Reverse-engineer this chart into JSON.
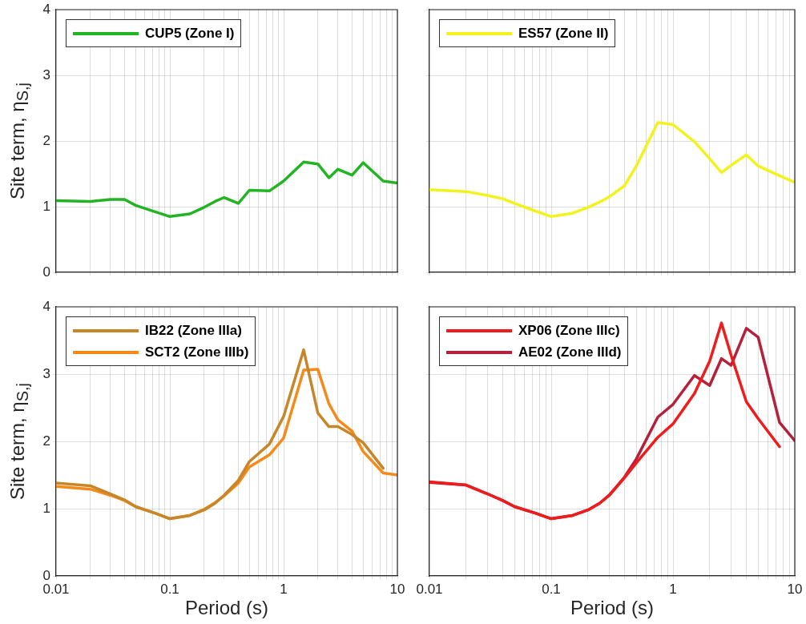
{
  "chart_data": [
    {
      "type": "line",
      "ylabel": "Site term, η$_{S,j}$",
      "log": "x",
      "grid": true,
      "legend": "top left",
      "tick_labels": "y",
      "marker": "none",
      "x": [
        0.01,
        0.02,
        0.03,
        0.04,
        0.05,
        0.075,
        0.1,
        0.15,
        0.2,
        0.25,
        0.3,
        0.4,
        0.5,
        0.75,
        1,
        1.5,
        2,
        2.5,
        3,
        4,
        5,
        7.5,
        10
      ],
      "xlim": [
        0.01,
        10
      ],
      "ylim": [
        0,
        4
      ],
      "yticks": [
        0,
        1,
        2,
        3,
        4
      ],
      "xticks": [
        0.01,
        {
          "value": 0.02,
          "label": null
        },
        {
          "value": 0.03,
          "label": null
        },
        {
          "value": 0.04,
          "label": null
        },
        {
          "value": 0.05,
          "label": null
        },
        {
          "value": 0.06,
          "label": null
        },
        {
          "value": 0.07,
          "label": null
        },
        {
          "value": 0.08,
          "label": null
        },
        {
          "value": 0.09,
          "label": null
        },
        0.1,
        {
          "value": 0.2,
          "label": null
        },
        {
          "value": 0.3,
          "label": null
        },
        {
          "value": 0.4,
          "label": null
        },
        {
          "value": 0.5,
          "label": null
        },
        {
          "value": 0.6,
          "label": null
        },
        {
          "value": 0.7,
          "label": null
        },
        {
          "value": 0.8,
          "label": null
        },
        {
          "value": 0.9,
          "label": null
        },
        1,
        {
          "value": 2,
          "label": null
        },
        {
          "value": 3,
          "label": null
        },
        {
          "value": 4,
          "label": null
        },
        {
          "value": 5,
          "label": null
        },
        {
          "value": 6,
          "label": null
        },
        {
          "value": 7,
          "label": null
        },
        {
          "value": 8,
          "label": null
        },
        {
          "value": 9,
          "label": null
        },
        10
      ],
      "series": [
        {
          "name": "CUP5 (Zone I)",
          "color": "#22b422",
          "values": [
            1.09,
            1.08,
            1.11,
            1.11,
            1.02,
            0.92,
            0.85,
            0.89,
            0.99,
            1.08,
            1.14,
            1.05,
            1.25,
            1.24,
            1.39,
            1.68,
            1.65,
            1.44,
            1.57,
            1.48,
            1.67,
            1.39,
            1.36
          ]
        }
      ]
    },
    {
      "type": "line",
      "log": "x",
      "grid": true,
      "legend": "top left",
      "tick_labels": false,
      "marker": "none",
      "x": [
        0.01,
        0.02,
        0.03,
        0.04,
        0.05,
        0.075,
        0.1,
        0.15,
        0.2,
        0.25,
        0.3,
        0.4,
        0.5,
        0.75,
        1,
        1.5,
        2,
        2.5,
        3,
        4,
        5,
        7.5,
        10
      ],
      "xlim": [
        0.01,
        10
      ],
      "ylim": [
        0,
        4
      ],
      "yticks": [
        0,
        1,
        2,
        3,
        4
      ],
      "xticks": [
        0.01,
        {
          "value": 0.02,
          "label": null
        },
        {
          "value": 0.03,
          "label": null
        },
        {
          "value": 0.04,
          "label": null
        },
        {
          "value": 0.05,
          "label": null
        },
        {
          "value": 0.06,
          "label": null
        },
        {
          "value": 0.07,
          "label": null
        },
        {
          "value": 0.08,
          "label": null
        },
        {
          "value": 0.09,
          "label": null
        },
        0.1,
        {
          "value": 0.2,
          "label": null
        },
        {
          "value": 0.3,
          "label": null
        },
        {
          "value": 0.4,
          "label": null
        },
        {
          "value": 0.5,
          "label": null
        },
        {
          "value": 0.6,
          "label": null
        },
        {
          "value": 0.7,
          "label": null
        },
        {
          "value": 0.8,
          "label": null
        },
        {
          "value": 0.9,
          "label": null
        },
        1,
        {
          "value": 2,
          "label": null
        },
        {
          "value": 3,
          "label": null
        },
        {
          "value": 4,
          "label": null
        },
        {
          "value": 5,
          "label": null
        },
        {
          "value": 6,
          "label": null
        },
        {
          "value": 7,
          "label": null
        },
        {
          "value": 8,
          "label": null
        },
        {
          "value": 9,
          "label": null
        },
        10
      ],
      "series": [
        {
          "name": "ES57 (Zone II)",
          "color": "#f2f21e",
          "values": [
            1.26,
            1.23,
            1.17,
            1.12,
            1.05,
            0.93,
            0.85,
            0.9,
            0.99,
            1.07,
            1.15,
            1.32,
            1.62,
            2.28,
            2.25,
            1.99,
            1.73,
            1.52,
            1.63,
            1.79,
            1.62,
            1.47,
            1.37
          ]
        }
      ]
    },
    {
      "type": "line",
      "ylabel": "Site term, η$_{S,j}$",
      "xlabel": "Period (s)",
      "log": "x",
      "grid": true,
      "legend": "top left",
      "marker": "none",
      "x": [
        0.01,
        0.02,
        0.03,
        0.04,
        0.05,
        0.075,
        0.1,
        0.15,
        0.2,
        0.25,
        0.3,
        0.4,
        0.5,
        0.75,
        1,
        1.5,
        2,
        2.5,
        3,
        4,
        5,
        7.5,
        10
      ],
      "xlim": [
        0.01,
        10
      ],
      "ylim": [
        0,
        4
      ],
      "yticks": [
        0,
        1,
        2,
        3,
        4
      ],
      "xticks": [
        0.01,
        {
          "value": 0.02,
          "label": null
        },
        {
          "value": 0.03,
          "label": null
        },
        {
          "value": 0.04,
          "label": null
        },
        {
          "value": 0.05,
          "label": null
        },
        {
          "value": 0.06,
          "label": null
        },
        {
          "value": 0.07,
          "label": null
        },
        {
          "value": 0.08,
          "label": null
        },
        {
          "value": 0.09,
          "label": null
        },
        0.1,
        {
          "value": 0.2,
          "label": null
        },
        {
          "value": 0.3,
          "label": null
        },
        {
          "value": 0.4,
          "label": null
        },
        {
          "value": 0.5,
          "label": null
        },
        {
          "value": 0.6,
          "label": null
        },
        {
          "value": 0.7,
          "label": null
        },
        {
          "value": 0.8,
          "label": null
        },
        {
          "value": 0.9,
          "label": null
        },
        1,
        {
          "value": 2,
          "label": null
        },
        {
          "value": 3,
          "label": null
        },
        {
          "value": 4,
          "label": null
        },
        {
          "value": 5,
          "label": null
        },
        {
          "value": 6,
          "label": null
        },
        {
          "value": 7,
          "label": null
        },
        {
          "value": 8,
          "label": null
        },
        {
          "value": 9,
          "label": null
        },
        10
      ],
      "series": [
        {
          "name": "IB22 (Zone IIIa)",
          "color": "#c8862a",
          "values": [
            1.38,
            1.34,
            1.22,
            1.13,
            1.03,
            0.93,
            0.85,
            0.9,
            0.98,
            1.08,
            1.2,
            1.42,
            1.7,
            1.96,
            2.37,
            3.36,
            2.42,
            2.22,
            2.22,
            2.1,
            1.98,
            1.6,
            null
          ]
        },
        {
          "name": "SCT2 (Zone IIIb)",
          "color": "#f58a1a",
          "values": [
            1.33,
            1.29,
            1.2,
            1.12,
            1.03,
            0.93,
            0.85,
            0.9,
            0.99,
            1.09,
            1.19,
            1.38,
            1.62,
            1.8,
            2.05,
            3.06,
            3.07,
            2.56,
            2.32,
            2.15,
            1.85,
            1.53,
            1.5
          ]
        }
      ]
    },
    {
      "type": "line",
      "xlabel": "Period (s)",
      "log": "x",
      "grid": true,
      "legend": "top left",
      "tick_labels": "x",
      "marker": "none",
      "x": [
        0.01,
        0.02,
        0.03,
        0.04,
        0.05,
        0.075,
        0.1,
        0.15,
        0.2,
        0.25,
        0.3,
        0.4,
        0.5,
        0.75,
        1,
        1.5,
        2,
        2.5,
        3,
        4,
        5,
        7.5,
        10
      ],
      "xlim": [
        0.01,
        10
      ],
      "ylim": [
        0,
        4
      ],
      "yticks": [
        0,
        1,
        2,
        3,
        4
      ],
      "xticks": [
        0.01,
        {
          "value": 0.02,
          "label": null
        },
        {
          "value": 0.03,
          "label": null
        },
        {
          "value": 0.04,
          "label": null
        },
        {
          "value": 0.05,
          "label": null
        },
        {
          "value": 0.06,
          "label": null
        },
        {
          "value": 0.07,
          "label": null
        },
        {
          "value": 0.08,
          "label": null
        },
        {
          "value": 0.09,
          "label": null
        },
        0.1,
        {
          "value": 0.2,
          "label": null
        },
        {
          "value": 0.3,
          "label": null
        },
        {
          "value": 0.4,
          "label": null
        },
        {
          "value": 0.5,
          "label": null
        },
        {
          "value": 0.6,
          "label": null
        },
        {
          "value": 0.7,
          "label": null
        },
        {
          "value": 0.8,
          "label": null
        },
        {
          "value": 0.9,
          "label": null
        },
        1,
        {
          "value": 2,
          "label": null
        },
        {
          "value": 3,
          "label": null
        },
        {
          "value": 4,
          "label": null
        },
        {
          "value": 5,
          "label": null
        },
        {
          "value": 6,
          "label": null
        },
        {
          "value": 7,
          "label": null
        },
        {
          "value": 8,
          "label": null
        },
        {
          "value": 9,
          "label": null
        },
        10
      ],
      "series": [
        {
          "name": "XP06 (Zone IIIc)",
          "color": "#ee1c1c",
          "values": [
            1.4,
            1.35,
            1.22,
            1.12,
            1.03,
            0.93,
            0.85,
            0.9,
            0.98,
            1.08,
            1.2,
            1.46,
            1.68,
            2.06,
            2.26,
            2.71,
            3.19,
            3.76,
            3.28,
            2.59,
            2.34,
            1.92,
            null
          ]
        },
        {
          "name": "AE02 (Zone IIId)",
          "color": "#b5213a",
          "values": [
            1.39,
            1.35,
            1.22,
            1.12,
            1.03,
            0.93,
            0.85,
            0.9,
            0.98,
            1.08,
            1.2,
            1.47,
            1.74,
            2.36,
            2.55,
            2.98,
            2.83,
            3.23,
            3.13,
            3.68,
            3.55,
            2.28,
            2.01
          ]
        }
      ]
    }
  ]
}
